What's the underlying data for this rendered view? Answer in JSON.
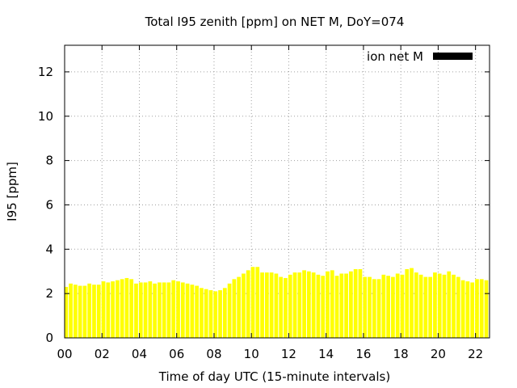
{
  "chart_data": {
    "type": "bar",
    "title": "Total I95 zenith [ppm] on NET M, DoY=074",
    "xlabel": "Time of day UTC (15-minute intervals)",
    "ylabel": "I95 [ppm]",
    "xlim": [
      0,
      22.75
    ],
    "ylim": [
      0,
      13.2
    ],
    "x_ticks": [
      "00",
      "02",
      "04",
      "06",
      "08",
      "10",
      "12",
      "14",
      "16",
      "18",
      "20",
      "22"
    ],
    "y_ticks": [
      "0",
      "2",
      "4",
      "6",
      "8",
      "10",
      "12"
    ],
    "grid": true,
    "legend_position": "top-right",
    "series": [
      {
        "name": "ion net M",
        "color": "#ffff00",
        "legend_color": "#000000",
        "x_start": 0,
        "x_step": 0.25,
        "values": [
          2.3,
          2.45,
          2.4,
          2.35,
          2.35,
          2.45,
          2.4,
          2.4,
          2.55,
          2.5,
          2.55,
          2.6,
          2.65,
          2.7,
          2.65,
          2.45,
          2.5,
          2.5,
          2.55,
          2.45,
          2.5,
          2.5,
          2.5,
          2.6,
          2.55,
          2.5,
          2.45,
          2.4,
          2.35,
          2.25,
          2.2,
          2.15,
          2.1,
          2.15,
          2.25,
          2.45,
          2.65,
          2.75,
          2.9,
          3.05,
          3.2,
          3.2,
          2.95,
          2.95,
          2.95,
          2.9,
          2.75,
          2.7,
          2.85,
          2.95,
          2.95,
          3.05,
          3.0,
          2.95,
          2.85,
          2.8,
          3.0,
          3.05,
          2.8,
          2.9,
          2.9,
          3.0,
          3.1,
          3.1,
          2.75,
          2.75,
          2.65,
          2.65,
          2.85,
          2.8,
          2.75,
          2.9,
          2.85,
          3.1,
          3.15,
          2.95,
          2.85,
          2.75,
          2.75,
          2.95,
          2.9,
          2.85,
          3.0,
          2.85,
          2.75,
          2.6,
          2.55,
          2.5,
          2.65,
          2.65,
          2.6
        ]
      }
    ]
  }
}
